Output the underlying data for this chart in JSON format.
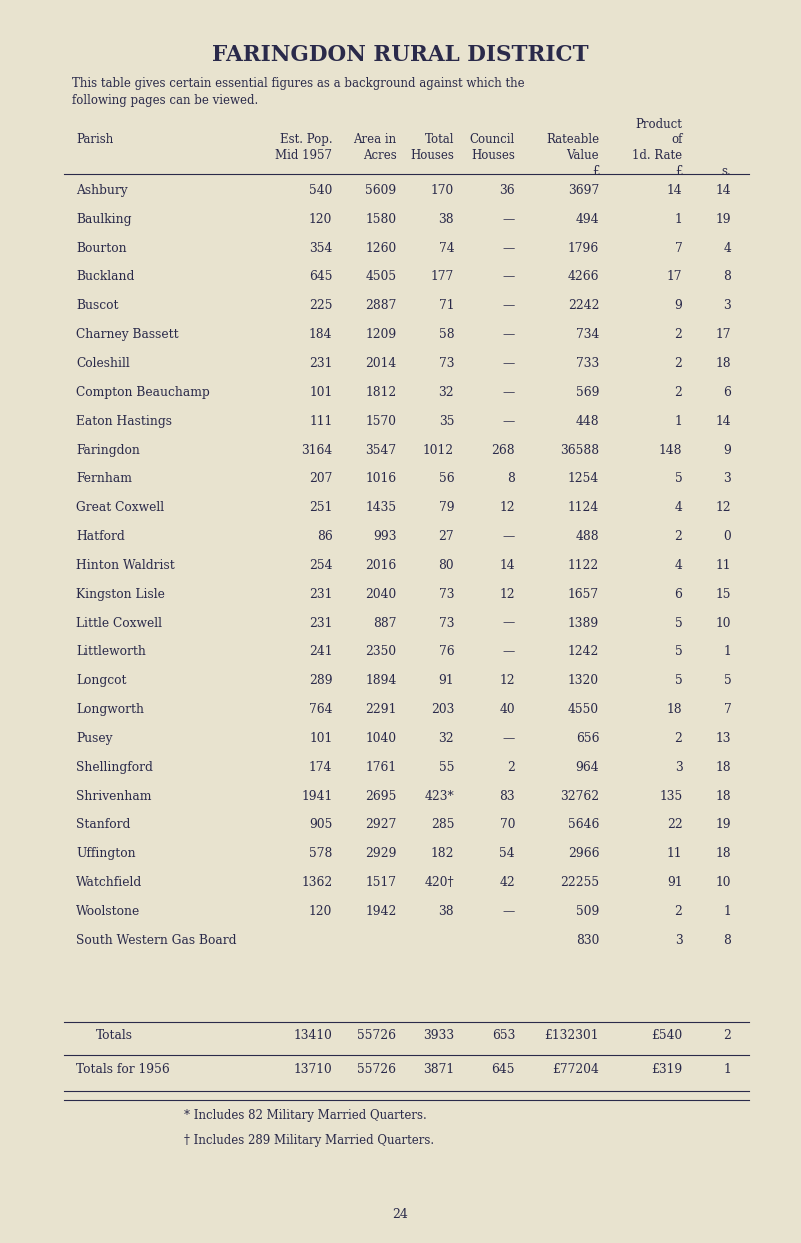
{
  "title": "FARINGDON RURAL DISTRICT",
  "subtitle1": "This table gives certain essential figures as a background against which the",
  "subtitle2": "following pages can be viewed.",
  "bg_color": "#e8e3cf",
  "text_color": "#2a2a4a",
  "page_number": "24",
  "rows": [
    [
      "Ashbury",
      "540",
      "5609",
      "170",
      "36",
      "3697",
      "14",
      "14"
    ],
    [
      "Baulking",
      "120",
      "1580",
      "38",
      "—",
      "494",
      "1",
      "19"
    ],
    [
      "Bourton",
      "354",
      "1260",
      "74",
      "—",
      "1796",
      "7",
      "4"
    ],
    [
      "Buckland",
      "645",
      "4505",
      "177",
      "—",
      "4266",
      "17",
      "8"
    ],
    [
      "Buscot",
      "225",
      "2887",
      "71",
      "—",
      "2242",
      "9",
      "3"
    ],
    [
      "Charney Bassett",
      "184",
      "1209",
      "58",
      "—",
      "734",
      "2",
      "17"
    ],
    [
      "Coleshill",
      "231",
      "2014",
      "73",
      "—",
      "733",
      "2",
      "18"
    ],
    [
      "Compton Beauchamp",
      "101",
      "1812",
      "32",
      "—",
      "569",
      "2",
      "6"
    ],
    [
      "Eaton Hastings",
      "111",
      "1570",
      "35",
      "—",
      "448",
      "1",
      "14"
    ],
    [
      "Faringdon",
      "3164",
      "3547",
      "1012",
      "268",
      "36588",
      "148",
      "9"
    ],
    [
      "Fernham",
      "207",
      "1016",
      "56",
      "8",
      "1254",
      "5",
      "3"
    ],
    [
      "Great Coxwell",
      "251",
      "1435",
      "79",
      "12",
      "1124",
      "4",
      "12"
    ],
    [
      "Hatford",
      "86",
      "993",
      "27",
      "—",
      "488",
      "2",
      "0"
    ],
    [
      "Hinton Waldrist",
      "254",
      "2016",
      "80",
      "14",
      "1122",
      "4",
      "11"
    ],
    [
      "Kingston Lisle",
      "231",
      "2040",
      "73",
      "12",
      "1657",
      "6",
      "15"
    ],
    [
      "Little Coxwell",
      "231",
      "887",
      "73",
      "—",
      "1389",
      "5",
      "10"
    ],
    [
      "Littleworth",
      "241",
      "2350",
      "76",
      "—",
      "1242",
      "5",
      "1"
    ],
    [
      "Longcot",
      "289",
      "1894",
      "91",
      "12",
      "1320",
      "5",
      "5"
    ],
    [
      "Longworth",
      "764",
      "2291",
      "203",
      "40",
      "4550",
      "18",
      "7"
    ],
    [
      "Pusey",
      "101",
      "1040",
      "32",
      "—",
      "656",
      "2",
      "13"
    ],
    [
      "Shellingford",
      "174",
      "1761",
      "55",
      "2",
      "964",
      "3",
      "18"
    ],
    [
      "Shrivenham",
      "1941",
      "2695",
      "423*",
      "83",
      "32762",
      "135",
      "18"
    ],
    [
      "Stanford",
      "905",
      "2927",
      "285",
      "70",
      "5646",
      "22",
      "19"
    ],
    [
      "Uffington",
      "578",
      "2929",
      "182",
      "54",
      "2966",
      "11",
      "18"
    ],
    [
      "Watchfield",
      "1362",
      "1517",
      "420†",
      "42",
      "22255",
      "91",
      "10"
    ],
    [
      "Woolstone",
      "120",
      "1942",
      "38",
      "—",
      "509",
      "2",
      "1"
    ],
    [
      "South Western Gas Board",
      "",
      "",
      "",
      "",
      "830",
      "3",
      "8"
    ]
  ],
  "totals_row": [
    "Totals",
    "13410",
    "55726",
    "3933",
    "653",
    "£132301",
    "£540",
    "2"
  ],
  "totals1956_row": [
    "Totals for 1956",
    "13710",
    "55726",
    "3871",
    "645",
    "£77204",
    "£319",
    "1"
  ],
  "footnotes": [
    "* Includes 82 Military Married Quarters.",
    "† Includes 289 Military Married Quarters."
  ]
}
